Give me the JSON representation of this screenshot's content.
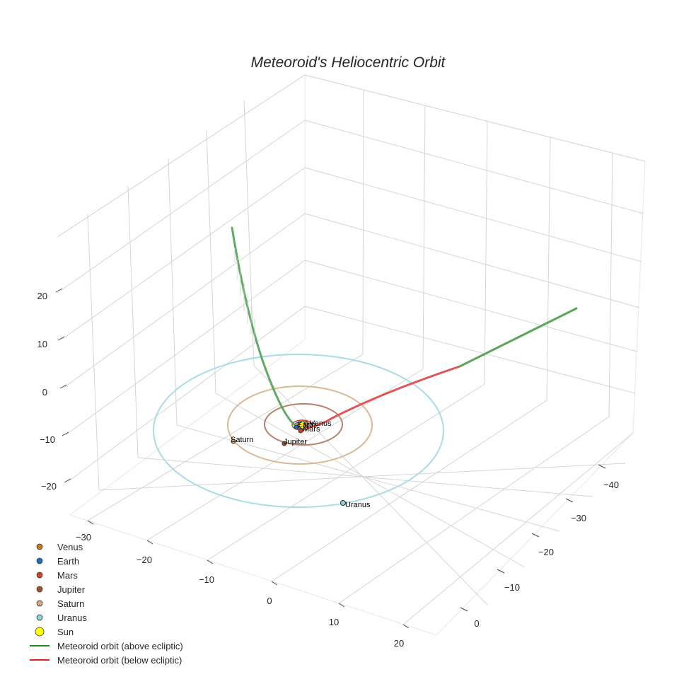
{
  "chart_data": {
    "type": "line3d",
    "title": "Meteoroid's Heliocentric Orbit",
    "axes": {
      "x_ticks": [
        "−30",
        "−20",
        "−10",
        "0",
        "10",
        "20"
      ],
      "y_ticks": [
        "−40",
        "−30",
        "−20",
        "−10",
        "0"
      ],
      "z_ticks": [
        "20",
        "10",
        "0",
        "−10",
        "−20"
      ],
      "x_range": [
        -35,
        25
      ],
      "y_range": [
        -45,
        5
      ],
      "z_range": [
        -25,
        30
      ],
      "grid": true
    },
    "planets": [
      {
        "name": "Venus",
        "color": "#c97b1f",
        "orbit_radius_au": 0.72,
        "label": "Venus"
      },
      {
        "name": "Earth",
        "color": "#1f6fb4",
        "orbit_radius_au": 1.0,
        "label": "Earth"
      },
      {
        "name": "Mars",
        "color": "#c9452b",
        "orbit_radius_au": 1.52,
        "label": "Mars"
      },
      {
        "name": "Jupiter",
        "color": "#a0522d",
        "orbit_radius_au": 5.2,
        "label": "Jupiter"
      },
      {
        "name": "Saturn",
        "color": "#d2a679",
        "orbit_radius_au": 9.5,
        "label": "Saturn"
      },
      {
        "name": "Uranus",
        "color": "#8ed0dc",
        "orbit_radius_au": 19.2,
        "label": "Uranus"
      }
    ],
    "sun": {
      "name": "Sun",
      "color": "#ffff00"
    },
    "series": [
      {
        "name": "Meteoroid orbit (above ecliptic)",
        "color": "#2e8b2e"
      },
      {
        "name": "Meteoroid orbit (below ecliptic)",
        "color": "#e23b3b"
      }
    ],
    "legend": [
      {
        "label": "Venus",
        "color": "#c97b1f",
        "kind": "dot"
      },
      {
        "label": "Earth",
        "color": "#1f6fb4",
        "kind": "dot"
      },
      {
        "label": "Mars",
        "color": "#c9452b",
        "kind": "dot"
      },
      {
        "label": "Jupiter",
        "color": "#a0522d",
        "kind": "dot"
      },
      {
        "label": "Saturn",
        "color": "#d2a679",
        "kind": "dot"
      },
      {
        "label": "Uranus",
        "color": "#8ed0dc",
        "kind": "dot"
      },
      {
        "label": "Sun",
        "color": "#ffff00",
        "kind": "bigdot"
      },
      {
        "label": "Meteoroid orbit (above ecliptic)",
        "color": "#1a8c1a",
        "kind": "line"
      },
      {
        "label": "Meteoroid orbit (below ecliptic)",
        "color": "#e32020",
        "kind": "line"
      }
    ],
    "legend_position": "bottom-left"
  }
}
